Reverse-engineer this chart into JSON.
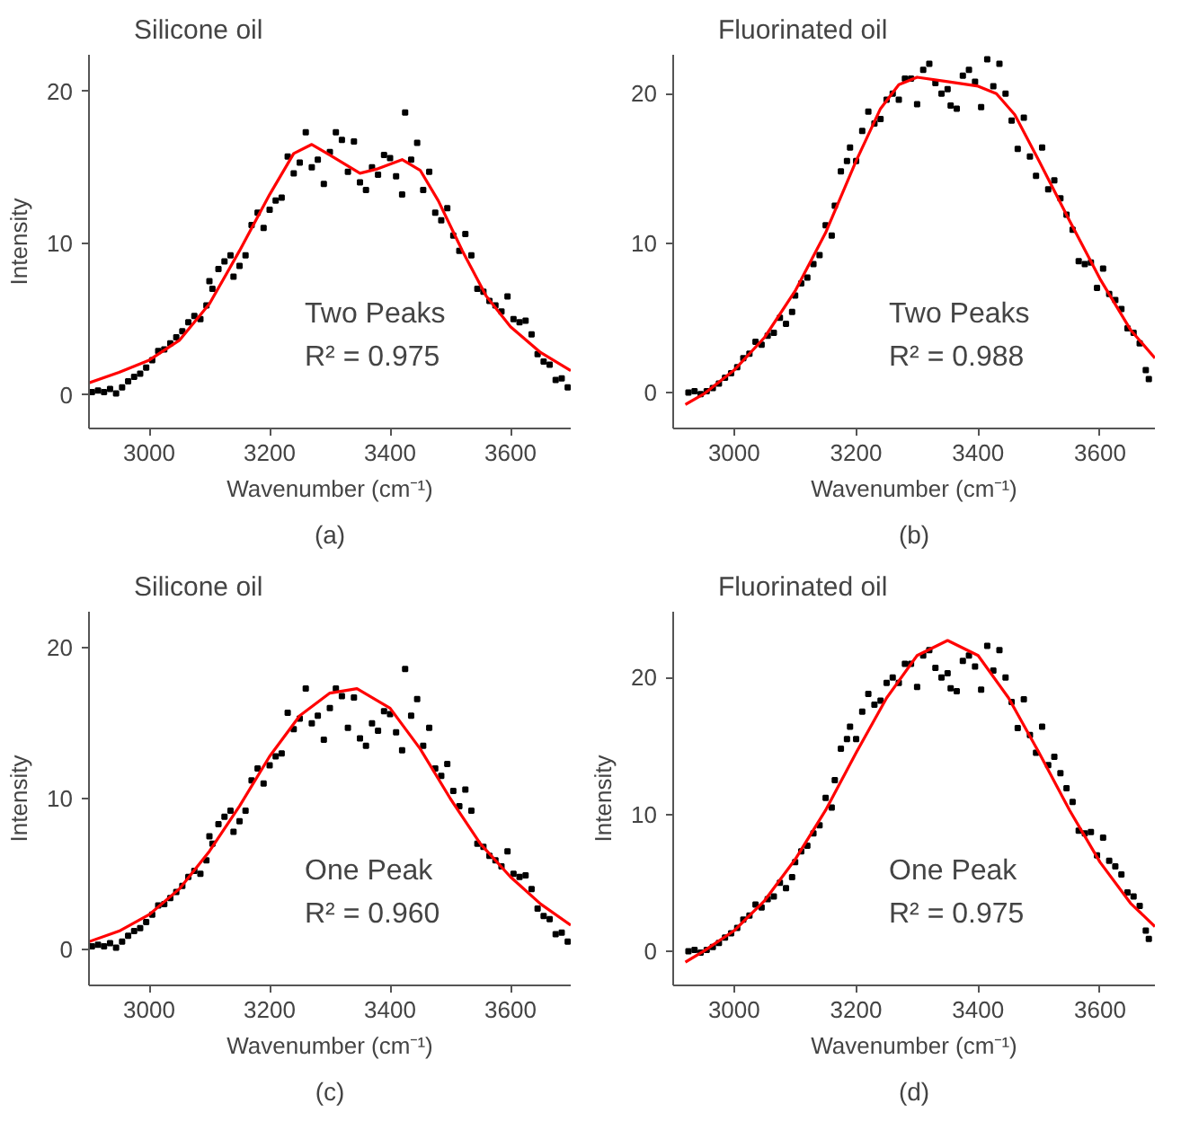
{
  "chart_data": [
    {
      "type": "scatter",
      "title": "Silicone oil",
      "xlabel": "Wavenumber (cm⁻¹)",
      "ylabel": "Intensity",
      "xlim": [
        2900,
        3700
      ],
      "ylim": [
        -2.2,
        22.4
      ],
      "xticks": [
        3000,
        3200,
        3400,
        3600
      ],
      "yticks": [
        0,
        10,
        20
      ],
      "grid": false,
      "annotations": [
        "Two Peaks",
        "R² = 0.975",
        "(a)"
      ],
      "series": [
        {
          "type": "scatter",
          "marker": "square",
          "color": "#000000",
          "x": [
            2905,
            2915,
            2925,
            2935,
            2945,
            2955,
            2965,
            2975,
            2985,
            2995,
            3005,
            3015,
            3025,
            3035,
            3045,
            3055,
            3065,
            3075,
            3085,
            3095,
            3100,
            3105,
            3115,
            3125,
            3135,
            3140,
            3150,
            3160,
            3170,
            3180,
            3190,
            3200,
            3210,
            3220,
            3230,
            3240,
            3250,
            3260,
            3270,
            3280,
            3290,
            3300,
            3310,
            3320,
            3330,
            3340,
            3350,
            3360,
            3370,
            3380,
            3390,
            3400,
            3410,
            3420,
            3425,
            3435,
            3445,
            3455,
            3465,
            3475,
            3485,
            3495,
            3505,
            3515,
            3525,
            3535,
            3545,
            3555,
            3565,
            3575,
            3585,
            3595,
            3605,
            3615,
            3625,
            3635,
            3645,
            3655,
            3665,
            3675,
            3685,
            3695
          ],
          "values": [
            0.2,
            0.3,
            0.2,
            0.4,
            0.1,
            0.5,
            0.9,
            1.2,
            1.4,
            1.8,
            2.3,
            2.9,
            3.0,
            3.4,
            3.8,
            4.2,
            4.8,
            5.2,
            5.0,
            5.9,
            7.5,
            7.0,
            8.3,
            8.8,
            9.2,
            7.8,
            8.5,
            9.2,
            11.2,
            12.0,
            11.0,
            12.2,
            12.8,
            13.0,
            15.7,
            14.6,
            15.3,
            17.3,
            15.0,
            15.5,
            13.9,
            16.0,
            17.3,
            16.8,
            14.7,
            16.7,
            14.0,
            13.5,
            15.0,
            14.5,
            15.8,
            15.6,
            14.4,
            13.2,
            18.6,
            15.5,
            16.6,
            13.5,
            14.7,
            12.0,
            11.5,
            12.3,
            10.5,
            9.5,
            10.6,
            9.2,
            7.0,
            6.8,
            6.2,
            5.9,
            5.5,
            6.5,
            5.0,
            4.8,
            4.9,
            4.0,
            2.7,
            2.2,
            2.0,
            1.0,
            1.1,
            0.5
          ]
        },
        {
          "type": "line",
          "color": "#ff0000",
          "x": [
            2900,
            2950,
            3000,
            3050,
            3100,
            3150,
            3200,
            3240,
            3270,
            3300,
            3350,
            3380,
            3420,
            3450,
            3480,
            3520,
            3560,
            3600,
            3650,
            3700
          ],
          "values": [
            0.8,
            1.5,
            2.3,
            3.6,
            6.0,
            9.5,
            13.2,
            15.9,
            16.5,
            15.8,
            14.6,
            14.9,
            15.5,
            14.8,
            12.8,
            9.5,
            6.5,
            4.5,
            2.8,
            1.6
          ]
        }
      ]
    },
    {
      "type": "scatter",
      "title": "Fluorinated oil",
      "xlabel": "Wavenumber (cm⁻¹)",
      "xlim": [
        2900,
        3690
      ],
      "ylim": [
        -2.4,
        22.6
      ],
      "xticks": [
        3000,
        3200,
        3400,
        3600
      ],
      "yticks": [
        0,
        10,
        20
      ],
      "grid": false,
      "annotations": [
        "Two Peaks",
        "R² = 0.988",
        "(b)"
      ],
      "series": [
        {
          "type": "scatter",
          "marker": "square",
          "color": "#000000",
          "x": [
            2925,
            2935,
            2945,
            2955,
            2965,
            2975,
            2985,
            2995,
            3005,
            3015,
            3025,
            3035,
            3045,
            3055,
            3065,
            3075,
            3085,
            3095,
            3100,
            3110,
            3120,
            3130,
            3140,
            3150,
            3160,
            3165,
            3175,
            3185,
            3190,
            3200,
            3210,
            3220,
            3230,
            3240,
            3250,
            3260,
            3270,
            3280,
            3290,
            3300,
            3310,
            3320,
            3330,
            3340,
            3350,
            3355,
            3365,
            3375,
            3385,
            3395,
            3405,
            3415,
            3425,
            3435,
            3445,
            3455,
            3465,
            3475,
            3485,
            3495,
            3505,
            3515,
            3525,
            3535,
            3545,
            3555,
            3565,
            3575,
            3585,
            3595,
            3605,
            3615,
            3625,
            3635,
            3645,
            3655,
            3665,
            3675,
            3680
          ],
          "values": [
            0.0,
            0.1,
            -0.1,
            0.1,
            0.3,
            0.6,
            1.0,
            1.3,
            1.7,
            2.3,
            2.6,
            3.4,
            3.2,
            3.8,
            4.0,
            5.0,
            4.6,
            5.4,
            6.5,
            7.3,
            7.7,
            8.6,
            9.2,
            11.2,
            10.5,
            12.5,
            14.8,
            15.5,
            16.4,
            15.5,
            17.5,
            18.8,
            18.0,
            18.3,
            19.6,
            20.0,
            19.6,
            21.0,
            21.0,
            19.3,
            21.6,
            22.0,
            20.7,
            20.0,
            20.3,
            19.2,
            19.0,
            21.2,
            21.6,
            20.8,
            19.1,
            22.3,
            20.5,
            22.0,
            20.0,
            18.2,
            16.3,
            18.4,
            15.8,
            14.5,
            16.4,
            13.6,
            14.2,
            13.0,
            11.9,
            10.9,
            8.8,
            8.6,
            8.7,
            7.0,
            8.3,
            6.6,
            6.2,
            5.6,
            4.3,
            4.0,
            3.3,
            1.5,
            0.9
          ]
        },
        {
          "type": "line",
          "color": "#ff0000",
          "x": [
            2920,
            2950,
            3000,
            3050,
            3100,
            3150,
            3200,
            3240,
            3270,
            3300,
            3350,
            3400,
            3430,
            3460,
            3500,
            3550,
            3600,
            3650,
            3690
          ],
          "values": [
            -0.8,
            -0.1,
            1.5,
            3.7,
            6.8,
            10.7,
            15.5,
            19.0,
            20.6,
            21.1,
            20.8,
            20.5,
            20.0,
            18.6,
            15.5,
            11.5,
            7.6,
            4.2,
            2.3
          ]
        }
      ]
    },
    {
      "type": "scatter",
      "title": "Silicone oil",
      "xlabel": "Wavenumber (cm⁻¹)",
      "ylabel": "Intensity",
      "xlim": [
        2900,
        3700
      ],
      "ylim": [
        -2.4,
        22.4
      ],
      "xticks": [
        3000,
        3200,
        3400,
        3600
      ],
      "yticks": [
        0,
        10,
        20
      ],
      "grid": false,
      "annotations": [
        "One Peak",
        "R² = 0.960",
        "(c)"
      ],
      "series": [
        {
          "type": "scatter",
          "marker": "square",
          "color": "#000000",
          "x": [
            2905,
            2915,
            2925,
            2935,
            2945,
            2955,
            2965,
            2975,
            2985,
            2995,
            3005,
            3015,
            3025,
            3035,
            3045,
            3055,
            3065,
            3075,
            3085,
            3095,
            3100,
            3105,
            3115,
            3125,
            3135,
            3140,
            3150,
            3160,
            3170,
            3180,
            3190,
            3200,
            3210,
            3220,
            3230,
            3240,
            3250,
            3260,
            3270,
            3280,
            3290,
            3300,
            3310,
            3320,
            3330,
            3340,
            3350,
            3360,
            3370,
            3380,
            3390,
            3400,
            3410,
            3420,
            3425,
            3435,
            3445,
            3455,
            3465,
            3475,
            3485,
            3495,
            3505,
            3515,
            3525,
            3535,
            3545,
            3555,
            3565,
            3575,
            3585,
            3595,
            3605,
            3615,
            3625,
            3635,
            3645,
            3655,
            3665,
            3675,
            3685,
            3695
          ],
          "values": [
            0.2,
            0.3,
            0.2,
            0.4,
            0.1,
            0.5,
            0.9,
            1.2,
            1.4,
            1.8,
            2.3,
            2.9,
            3.0,
            3.4,
            3.8,
            4.2,
            4.8,
            5.2,
            5.0,
            5.9,
            7.5,
            7.0,
            8.3,
            8.8,
            9.2,
            7.8,
            8.5,
            9.2,
            11.2,
            12.0,
            11.0,
            12.2,
            12.8,
            13.0,
            15.7,
            14.6,
            15.3,
            17.3,
            15.0,
            15.5,
            13.9,
            16.0,
            17.3,
            16.8,
            14.7,
            16.7,
            14.0,
            13.5,
            15.0,
            14.5,
            15.8,
            15.6,
            14.4,
            13.2,
            18.6,
            15.5,
            16.6,
            13.5,
            14.7,
            12.0,
            11.5,
            12.3,
            10.5,
            9.5,
            10.6,
            9.2,
            7.0,
            6.8,
            6.2,
            5.9,
            5.5,
            6.5,
            5.0,
            4.8,
            4.9,
            4.0,
            2.7,
            2.2,
            2.0,
            1.0,
            1.1,
            0.5
          ]
        },
        {
          "type": "line",
          "color": "#ff0000",
          "x": [
            2900,
            2950,
            3000,
            3050,
            3100,
            3150,
            3200,
            3250,
            3300,
            3345,
            3400,
            3450,
            3500,
            3550,
            3600,
            3650,
            3700
          ],
          "values": [
            0.5,
            1.2,
            2.3,
            4.0,
            6.5,
            9.5,
            12.8,
            15.5,
            17.0,
            17.3,
            16.0,
            13.3,
            10.0,
            7.0,
            4.8,
            3.0,
            1.6
          ]
        }
      ]
    },
    {
      "type": "scatter",
      "title": "Fluorinated oil",
      "xlabel": "Wavenumber (cm⁻¹)",
      "ylabel": "Intensity",
      "xlim": [
        2900,
        3690
      ],
      "ylim": [
        -2.5,
        24.8
      ],
      "xticks": [
        3000,
        3200,
        3400,
        3600
      ],
      "yticks": [
        0,
        10,
        20
      ],
      "grid": false,
      "annotations": [
        "One Peak",
        "R² = 0.975",
        "(d)"
      ],
      "series": [
        {
          "type": "scatter",
          "marker": "square",
          "color": "#000000",
          "x": [
            2925,
            2935,
            2945,
            2955,
            2965,
            2975,
            2985,
            2995,
            3005,
            3015,
            3025,
            3035,
            3045,
            3055,
            3065,
            3075,
            3085,
            3095,
            3100,
            3110,
            3120,
            3130,
            3140,
            3150,
            3160,
            3165,
            3175,
            3185,
            3190,
            3200,
            3210,
            3220,
            3230,
            3240,
            3250,
            3260,
            3270,
            3280,
            3290,
            3300,
            3310,
            3320,
            3330,
            3340,
            3350,
            3355,
            3365,
            3375,
            3385,
            3395,
            3405,
            3415,
            3425,
            3435,
            3445,
            3455,
            3465,
            3475,
            3485,
            3495,
            3505,
            3515,
            3525,
            3535,
            3545,
            3555,
            3565,
            3575,
            3585,
            3595,
            3605,
            3615,
            3625,
            3635,
            3645,
            3655,
            3665,
            3675,
            3680
          ],
          "values": [
            0.0,
            0.1,
            -0.1,
            0.1,
            0.3,
            0.6,
            1.0,
            1.3,
            1.7,
            2.3,
            2.6,
            3.4,
            3.2,
            3.8,
            4.0,
            5.0,
            4.6,
            5.4,
            6.5,
            7.3,
            7.7,
            8.6,
            9.2,
            11.2,
            10.5,
            12.5,
            14.8,
            15.5,
            16.4,
            15.5,
            17.5,
            18.8,
            18.0,
            18.3,
            19.6,
            20.0,
            19.6,
            21.0,
            21.0,
            19.3,
            21.6,
            22.0,
            20.7,
            20.0,
            20.3,
            19.2,
            19.0,
            21.2,
            21.6,
            20.8,
            19.1,
            22.3,
            20.5,
            22.0,
            20.0,
            18.2,
            16.3,
            18.4,
            15.8,
            14.5,
            16.4,
            13.6,
            14.2,
            13.0,
            11.9,
            10.9,
            8.8,
            8.6,
            8.7,
            7.0,
            8.3,
            6.6,
            6.2,
            5.6,
            4.3,
            4.0,
            3.3,
            1.5,
            0.9
          ]
        },
        {
          "type": "line",
          "color": "#ff0000",
          "x": [
            2920,
            2950,
            3000,
            3050,
            3100,
            3150,
            3200,
            3250,
            3300,
            3350,
            3400,
            3450,
            3500,
            3550,
            3600,
            3650,
            3690
          ],
          "values": [
            -0.8,
            0.0,
            1.5,
            3.7,
            6.7,
            10.3,
            14.5,
            18.5,
            21.6,
            22.7,
            21.6,
            18.5,
            14.5,
            10.3,
            6.5,
            3.5,
            1.8
          ]
        }
      ]
    }
  ]
}
